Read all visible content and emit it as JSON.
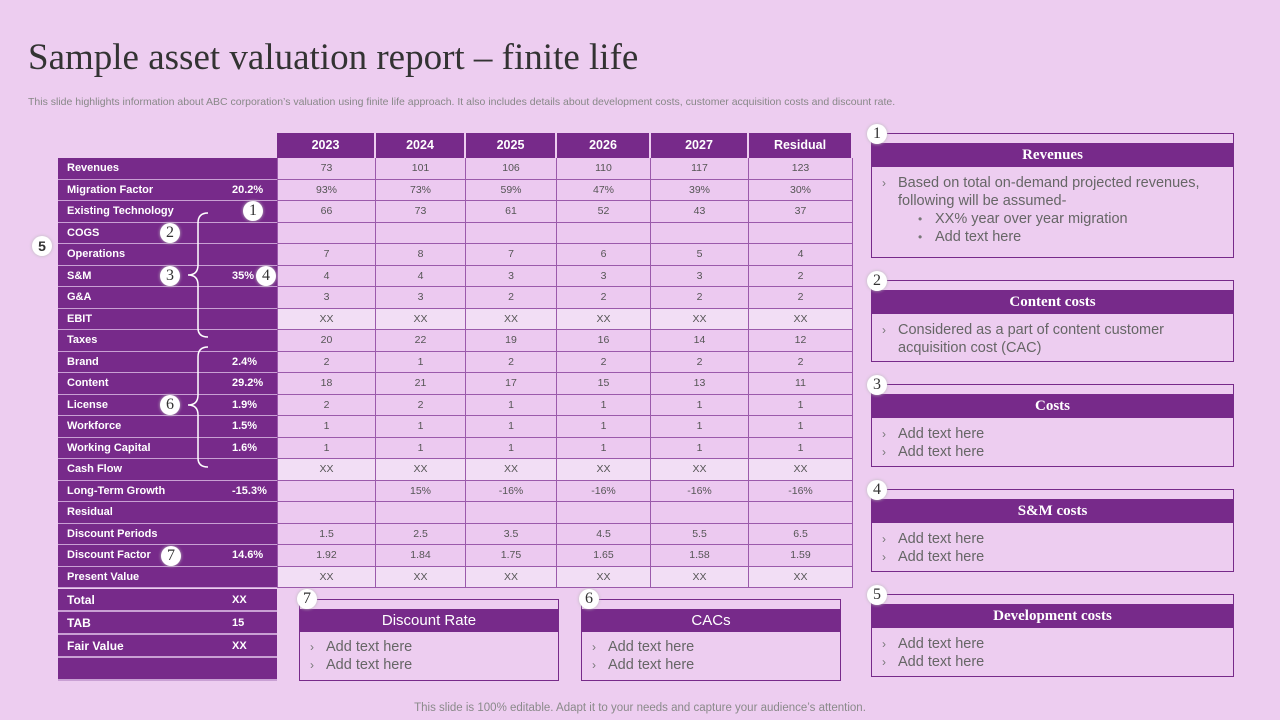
{
  "title": "Sample asset valuation report – finite life",
  "subtitle": "This slide highlights information about ABC corporation’s valuation using finite life approach. It also includes details about development costs, customer acquisition costs and discount rate.",
  "footer": "This slide is 100% editable. Adapt it to your needs and capture your audience’s attention.",
  "colors": {
    "primary": "#772a8a",
    "background": "#edcdf0"
  },
  "table": {
    "columns": [
      "2023",
      "2024",
      "2025",
      "2026",
      "2027",
      "Residual"
    ],
    "rows": [
      {
        "label": "Revenues",
        "pct": "",
        "values": [
          "73",
          "101",
          "106",
          "110",
          "117",
          "123"
        ]
      },
      {
        "label": "Migration Factor",
        "pct": "20.2%",
        "values": [
          "93%",
          "73%",
          "59%",
          "47%",
          "39%",
          "30%"
        ]
      },
      {
        "label": "Existing Technology",
        "pct": "",
        "values": [
          "66",
          "73",
          "61",
          "52",
          "43",
          "37"
        ]
      },
      {
        "label": "COGS",
        "pct": "",
        "values": [
          "",
          "",
          "",
          "",
          "",
          ""
        ]
      },
      {
        "label": "Operations",
        "pct": "",
        "values": [
          "7",
          "8",
          "7",
          "6",
          "5",
          "4"
        ]
      },
      {
        "label": "S&M",
        "pct": "35%",
        "values": [
          "4",
          "4",
          "3",
          "3",
          "3",
          "2"
        ]
      },
      {
        "label": "G&A",
        "pct": "",
        "values": [
          "3",
          "3",
          "2",
          "2",
          "2",
          "2"
        ]
      },
      {
        "label": "EBIT",
        "pct": "",
        "values": [
          "XX",
          "XX",
          "XX",
          "XX",
          "XX",
          "XX"
        ]
      },
      {
        "label": "Taxes",
        "pct": "",
        "values": [
          "20",
          "22",
          "19",
          "16",
          "14",
          "12"
        ]
      },
      {
        "label": "Brand",
        "pct": "2.4%",
        "values": [
          "2",
          "1",
          "2",
          "2",
          "2",
          "2"
        ]
      },
      {
        "label": "Content",
        "pct": "29.2%",
        "values": [
          "18",
          "21",
          "17",
          "15",
          "13",
          "11"
        ]
      },
      {
        "label": "License",
        "pct": "1.9%",
        "values": [
          "2",
          "2",
          "1",
          "1",
          "1",
          "1"
        ]
      },
      {
        "label": "Workforce",
        "pct": "1.5%",
        "values": [
          "1",
          "1",
          "1",
          "1",
          "1",
          "1"
        ]
      },
      {
        "label": "Working Capital",
        "pct": "1.6%",
        "values": [
          "1",
          "1",
          "1",
          "1",
          "1",
          "1"
        ]
      },
      {
        "label": "Cash Flow",
        "pct": "",
        "values": [
          "XX",
          "XX",
          "XX",
          "XX",
          "XX",
          "XX"
        ]
      },
      {
        "label": "Long-Term Growth",
        "pct": "-15.3%",
        "values": [
          "",
          "15%",
          "-16%",
          "-16%",
          "-16%",
          "-16%"
        ]
      },
      {
        "label": "Residual",
        "pct": "",
        "values": [
          "",
          "",
          "",
          "",
          "",
          ""
        ]
      },
      {
        "label": "Discount Periods",
        "pct": "",
        "values": [
          "1.5",
          "2.5",
          "3.5",
          "4.5",
          "5.5",
          "6.5"
        ]
      },
      {
        "label": "Discount Factor",
        "pct": "14.6%",
        "values": [
          "1.92",
          "1.84",
          "1.75",
          "1.65",
          "1.58",
          "1.59"
        ]
      },
      {
        "label": "Present Value",
        "pct": "",
        "values": [
          "XX",
          "XX",
          "XX",
          "XX",
          "XX",
          "XX"
        ]
      }
    ],
    "totals": [
      {
        "label": "Total",
        "value": "XX"
      },
      {
        "label": "TAB",
        "value": "15"
      },
      {
        "label": "Fair Value",
        "value": "XX"
      }
    ]
  },
  "badges": {
    "b1": "1",
    "b2": "2",
    "b3": "3",
    "b4": "4",
    "b5": "5",
    "b6": "6",
    "b7": "7"
  },
  "panels": [
    {
      "num": "1",
      "title": "Revenues",
      "items": [
        "Based on total on-demand projected revenues, following will be assumed-"
      ],
      "subitems": [
        "XX% year over year migration",
        "Add text here"
      ]
    },
    {
      "num": "2",
      "title": "Content costs",
      "items": [
        "Considered as a part of content customer acquisition cost (CAC)"
      ]
    },
    {
      "num": "3",
      "title": "Costs",
      "items": [
        "Add text here",
        "Add text here"
      ]
    },
    {
      "num": "4",
      "title": "S&M costs",
      "items": [
        "Add text here",
        "Add text here"
      ]
    },
    {
      "num": "5",
      "title": "Development costs",
      "items": [
        "Add text here",
        "Add text here"
      ]
    }
  ],
  "bottom_panels": [
    {
      "num": "7",
      "title": "Discount Rate",
      "items": [
        "Add text here",
        "Add text here"
      ]
    },
    {
      "num": "6",
      "title": "CACs",
      "items": [
        "Add text here",
        "Add text here"
      ]
    }
  ]
}
